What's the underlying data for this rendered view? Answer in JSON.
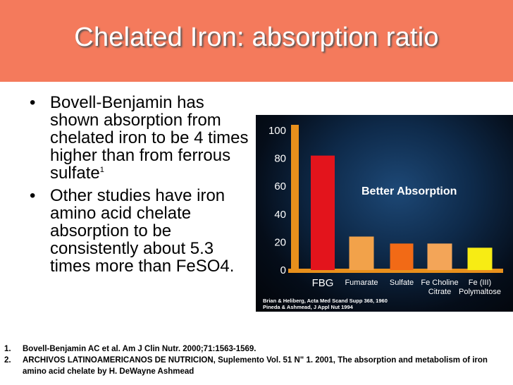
{
  "slide": {
    "title": "Chelated Iron: absorption ratio",
    "bullets": [
      {
        "text": "Bovell-Benjamin has shown absorption from chelated iron to be 4 times higher than from ferrous sulfate",
        "sup": "1"
      },
      {
        "text": "Other studies have iron amino acid chelate absorption to be consistently about 5.3 times more than FeSO4.",
        "sup": ""
      }
    ],
    "references": [
      {
        "num": "1.",
        "text": "Bovell-Benjamin AC et al. Am J Clin Nutr. 2000;71:1563-1569."
      },
      {
        "num": "2.",
        "text": "ARCHIVOS LATINOAMERICANOS DE NUTRICION, Suplemento Vol. 51 N\" 1. 2001, The absorption and metabolism of iron amino acid chelate by H. DeWayne Ashmead"
      }
    ]
  },
  "colors": {
    "title_bar": "#f47a5c",
    "bar_fbg": "#e3141c",
    "bar_fumarate": "#f2a24a",
    "bar_sulfate": "#f26a16",
    "bar_fe_choline": "#f3a558",
    "bar_fe3": "#f7ec14",
    "axis_orange": "#e8901c"
  },
  "chart_data": {
    "type": "bar",
    "categories": [
      {
        "label": "FBG",
        "lines": [
          "FBG"
        ]
      },
      {
        "label": "Fumarate",
        "lines": [
          "Fumarate"
        ]
      },
      {
        "label": "Sulfate",
        "lines": [
          "Sulfate"
        ]
      },
      {
        "label": "Fe Choline Citrate",
        "lines": [
          "Fe Choline",
          "Citrate"
        ]
      },
      {
        "label": "Fe (III) Polymaltose",
        "lines": [
          "Fe (III)",
          "Polymaltose"
        ]
      }
    ],
    "values": [
      82,
      24,
      19,
      19,
      16
    ],
    "ylim": [
      0,
      100
    ],
    "yticks": [
      0,
      20,
      40,
      60,
      80,
      100
    ],
    "annotation": "Better Absorption",
    "source_lines": [
      "Brian & Heliberg, Acta Med Scand Supp 368, 1960",
      "Pineda & Ashmead, J Appl Nut 1994"
    ],
    "grid": false,
    "legend": "none"
  }
}
